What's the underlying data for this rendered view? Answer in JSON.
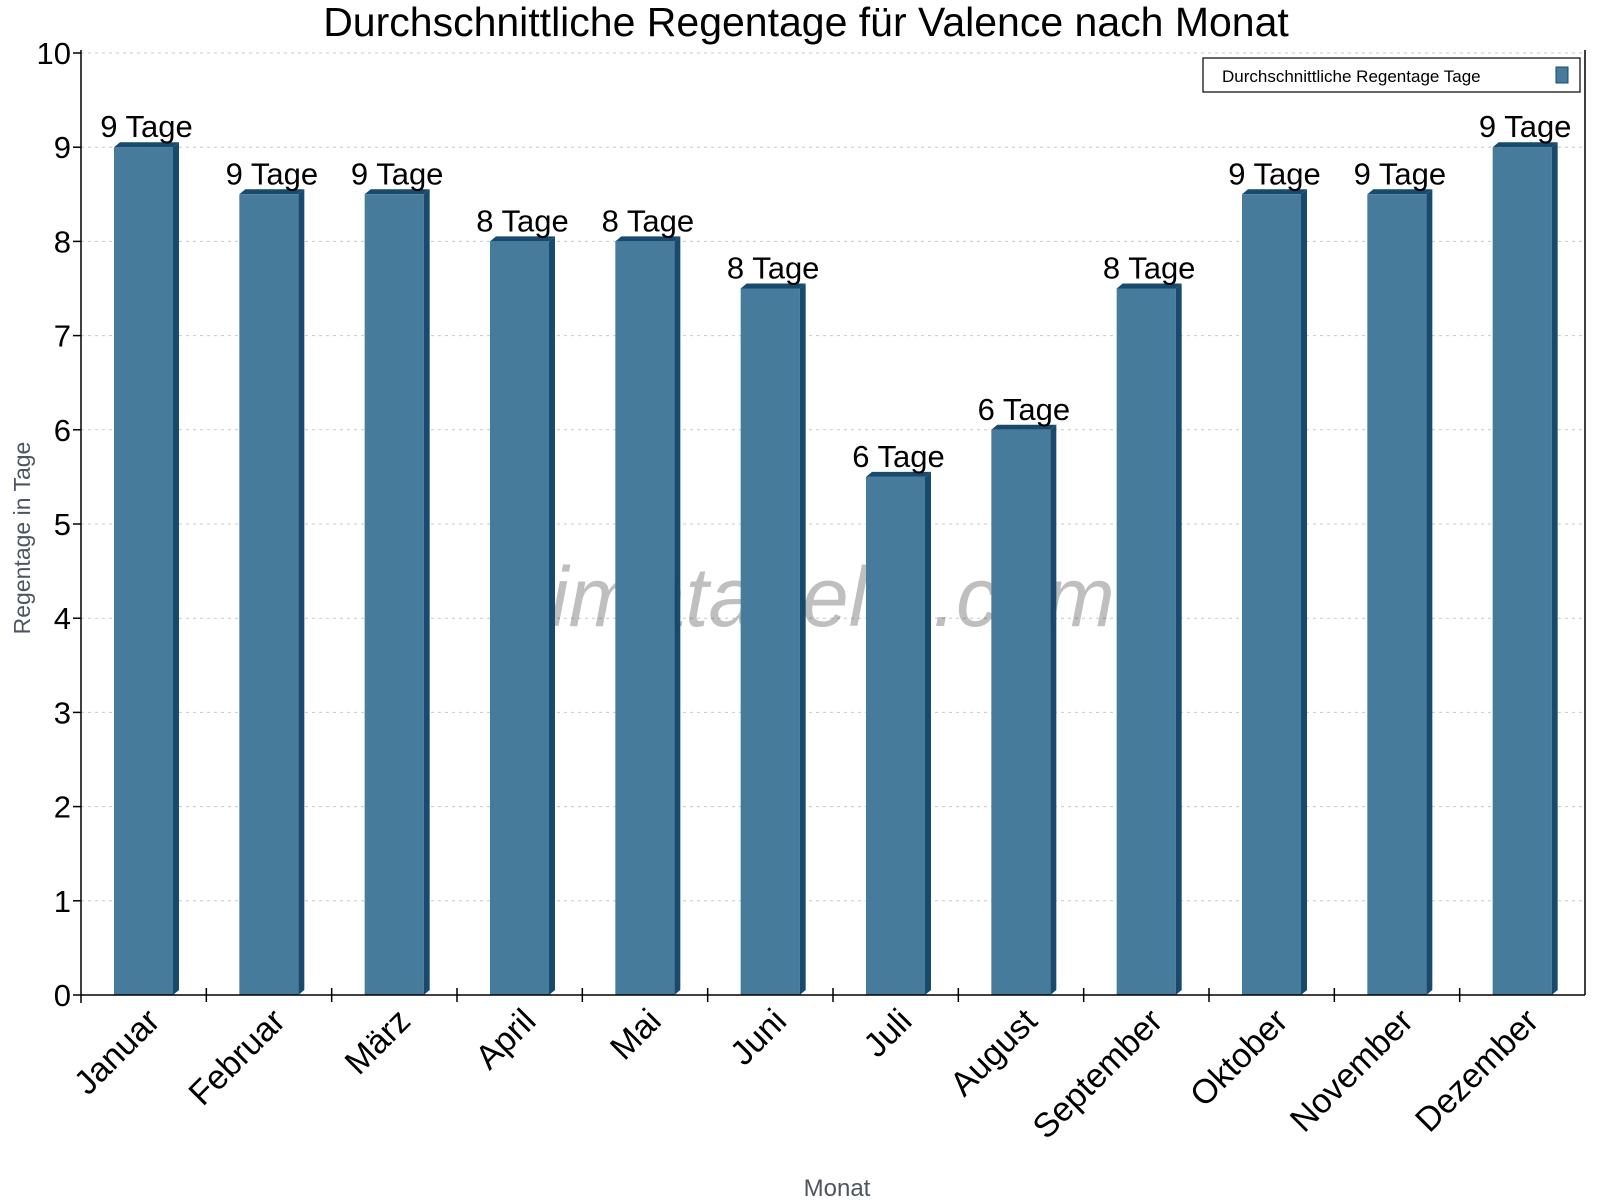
{
  "chart_data": {
    "type": "bar",
    "title": "Durchschnittliche Regentage für Valence nach Monat",
    "xlabel": "Monat",
    "ylabel": "Regentage in Tage",
    "ylim": [
      0,
      10
    ],
    "yticks": [
      "0",
      "1",
      "2",
      "3",
      "4",
      "5",
      "6",
      "7",
      "8",
      "9",
      "10"
    ],
    "grid": true,
    "legend_placement": "top-right",
    "categories": [
      "Januar",
      "Februar",
      "März",
      "April",
      "Mai",
      "Juni",
      "Juli",
      "August",
      "September",
      "Oktober",
      "November",
      "Dezember"
    ],
    "series": [
      {
        "name": "Durchschnittliche Regentage Tage",
        "color": "#467b9c",
        "side_color": "#174a6c",
        "values": [
          9,
          8.5,
          8.5,
          8,
          8,
          7.5,
          5.5,
          6,
          7.5,
          8.5,
          8.5,
          9
        ],
        "labels": [
          "9 Tage",
          "9 Tage",
          "9 Tage",
          "8 Tage",
          "8 Tage",
          "8 Tage",
          "6 Tage",
          "6 Tage",
          "8 Tage",
          "9 Tage",
          "9 Tage",
          "9 Tage"
        ]
      }
    ],
    "watermark": "klimatabelle.com"
  }
}
